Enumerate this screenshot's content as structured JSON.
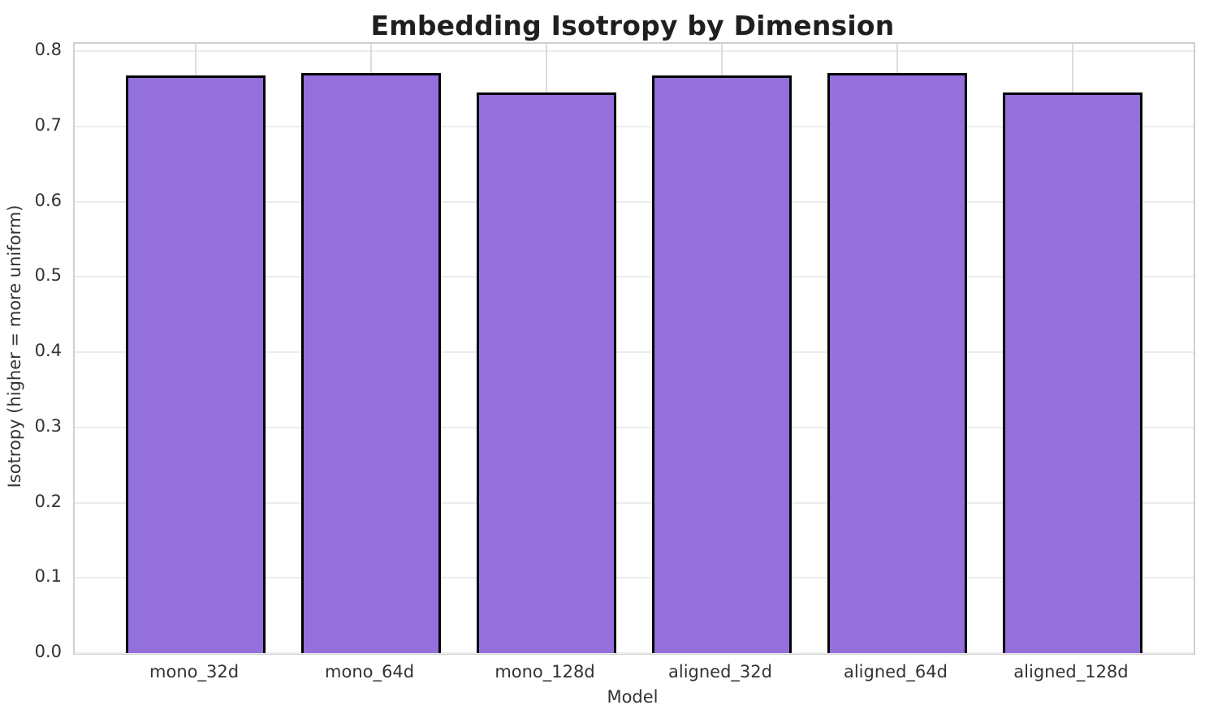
{
  "chart_data": {
    "type": "bar",
    "title": "Embedding Isotropy by Dimension",
    "xlabel": "Model",
    "ylabel": "Isotropy (higher = more uniform)",
    "categories": [
      "mono_32d",
      "mono_64d",
      "mono_128d",
      "aligned_32d",
      "aligned_64d",
      "aligned_128d"
    ],
    "values": [
      0.768,
      0.771,
      0.745,
      0.768,
      0.771,
      0.745
    ],
    "ylim": [
      0,
      0.81
    ],
    "yticks": [
      0.0,
      0.1,
      0.2,
      0.3,
      0.4,
      0.5,
      0.6,
      0.7,
      0.8
    ],
    "ytick_labels": [
      "0.0",
      "0.1",
      "0.2",
      "0.3",
      "0.4",
      "0.5",
      "0.6",
      "0.7",
      "0.8"
    ],
    "bar_width_frac": 0.8,
    "grid": "both",
    "legend": "none",
    "colors": {
      "bar_fill": "#9370DB",
      "bar_edge": "#000000",
      "grid_horizontal": "#ececec",
      "grid_vertical": "#dcdcdc",
      "spine": "#cfcfcf",
      "title_text": "#1f1f1f",
      "tick_text": "#333333",
      "background": "#ffffff"
    }
  }
}
